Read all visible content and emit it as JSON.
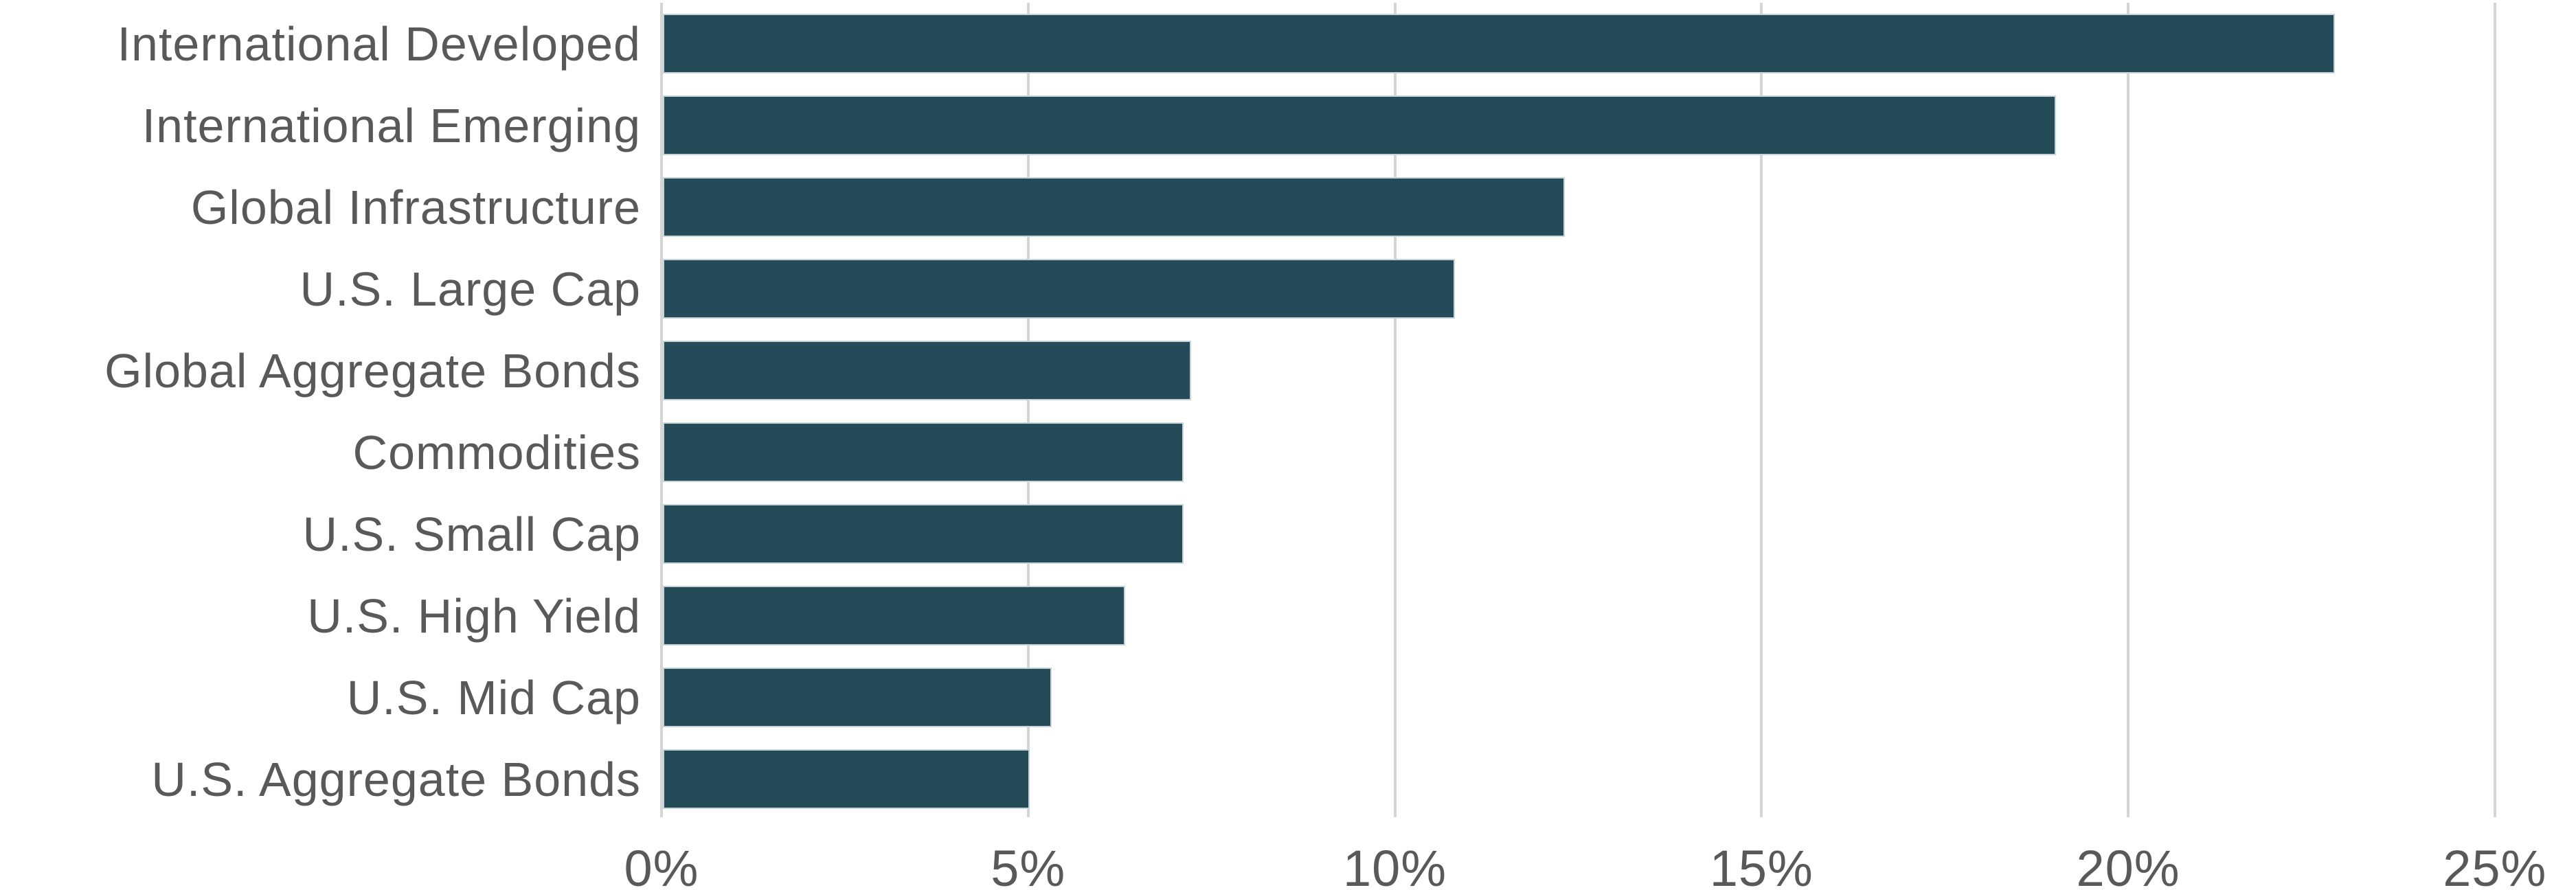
{
  "chart_data": {
    "type": "bar",
    "orientation": "horizontal",
    "title": "",
    "categories": [
      "International Developed",
      "International Emerging",
      "Global Infrastructure",
      "U.S. Large Cap",
      "Global Aggregate Bonds",
      "Commodities",
      "U.S. Small Cap",
      "U.S. High Yield",
      "U.S. Mid Cap",
      "U.S. Aggregate Bonds"
    ],
    "values": [
      22.8,
      19.0,
      12.3,
      10.8,
      7.2,
      7.1,
      7.1,
      6.3,
      5.3,
      5.0
    ],
    "unit": "%",
    "x_ticks": [
      0,
      5,
      10,
      15,
      20,
      25
    ],
    "x_tick_labels": [
      "0%",
      "5%",
      "10%",
      "15%",
      "20%",
      "25%"
    ],
    "xlim": [
      0,
      26.1
    ],
    "grid": "vertical-gridlines-behind-bars",
    "legend": "none",
    "axis_labels": {
      "xlabel": "",
      "ylabel": ""
    },
    "colors": {
      "bar": "#254B58",
      "bar_border": "#C6D4D8",
      "label_text": "#595959",
      "tick_text": "#595959",
      "gridline": "#D5D5D5",
      "background": "#FFFFFF"
    }
  }
}
